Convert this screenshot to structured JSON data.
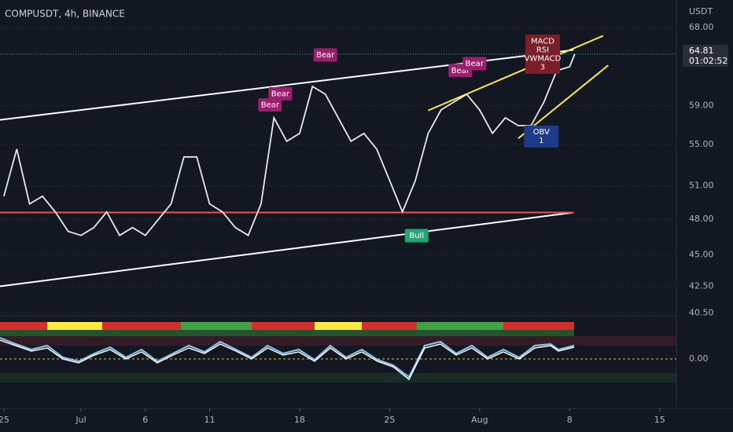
{
  "chart_data": {
    "type": "line",
    "title": "COMPUSDT, 4h, BINANCE",
    "y_axis_label": "USDT",
    "log_scale": true,
    "x": [
      0,
      1,
      2,
      3,
      4,
      5,
      6,
      7,
      8,
      9,
      10,
      11,
      12,
      13,
      14,
      15,
      16,
      17,
      18,
      19,
      20,
      21,
      22,
      23,
      24,
      25,
      26,
      27,
      28,
      29,
      30,
      31,
      32,
      33,
      34,
      35,
      36,
      37,
      38,
      39,
      40,
      41,
      42,
      43,
      44,
      44.4
    ],
    "series": [
      {
        "name": "COMPUSDT",
        "color": "#e8e8e8",
        "values": [
          50.06,
          54.53,
          49.36,
          50.06,
          48.65,
          46.96,
          46.62,
          47.29,
          48.65,
          46.62,
          47.29,
          46.62,
          47.97,
          49.36,
          53.76,
          53.76,
          49.36,
          48.65,
          47.29,
          46.62,
          49.36,
          57.73,
          55.31,
          56.11,
          61.11,
          60.25,
          57.73,
          55.31,
          56.11,
          54.53,
          51.51,
          48.65,
          51.51,
          56.11,
          58.56,
          59.4,
          60.25,
          58.56,
          56.11,
          57.73,
          56.91,
          56.91,
          59.4,
          62.88,
          63.33,
          64.81
        ]
      }
    ],
    "xlim": [
      -0.3,
      52.3
    ],
    "xticks": [
      {
        "value": 0,
        "label": "25"
      },
      {
        "value": 6,
        "label": "Jul"
      },
      {
        "value": 11,
        "label": "6"
      },
      {
        "value": 16,
        "label": "11"
      },
      {
        "value": 23,
        "label": "18"
      },
      {
        "value": 30,
        "label": "25"
      },
      {
        "value": 37,
        "label": "Aug"
      },
      {
        "value": 44,
        "label": "8"
      },
      {
        "value": 51,
        "label": "15"
      }
    ],
    "ylim": [
      40.4,
      71.5
    ],
    "yticks": [
      {
        "value": 40.5,
        "label": "40.50"
      },
      {
        "value": 42.5,
        "label": "42.50"
      },
      {
        "value": 45,
        "label": "45.00"
      },
      {
        "value": 48,
        "label": "48.00"
      },
      {
        "value": 51,
        "label": "51.00"
      },
      {
        "value": 55,
        "label": "55.00"
      },
      {
        "value": 59,
        "label": "59.00"
      },
      {
        "value": 68,
        "label": "68.00"
      }
    ],
    "last_price": 64.81,
    "countdown": "01:02:52",
    "trendlines": [
      {
        "color": "#ffffff",
        "points": [
          [
            -0.3,
            57.5
          ],
          [
            44.3,
            65.3
          ]
        ]
      },
      {
        "color": "#ffffff",
        "points": [
          [
            -0.3,
            42.5
          ],
          [
            44.3,
            48.6
          ]
        ]
      },
      {
        "color": "#ef5350",
        "points": [
          [
            -0.3,
            48.6
          ],
          [
            44.3,
            48.6
          ]
        ]
      },
      {
        "color": "#ffeb3b",
        "points": [
          [
            33,
            58.5
          ],
          [
            46.6,
            67
          ]
        ]
      },
      {
        "color": "#ffeb3b",
        "points": [
          [
            40,
            55.6
          ],
          [
            47,
            63.5
          ]
        ]
      }
    ],
    "annotations": [
      {
        "text": [
          "Bear"
        ],
        "x": 20.7,
        "y": 59.1,
        "color": "#9c1f6e"
      },
      {
        "text": [
          "Bear"
        ],
        "x": 21.5,
        "y": 60.3,
        "color": "#9c1f6e"
      },
      {
        "text": [
          "Bear"
        ],
        "x": 25,
        "y": 64.7,
        "color": "#9c1f6e"
      },
      {
        "text": [
          "Bear"
        ],
        "x": 35.5,
        "y": 62.9,
        "color": "#9c1f6e"
      },
      {
        "text": [
          "Bear"
        ],
        "x": 36.6,
        "y": 63.7,
        "color": "#9c1f6e"
      },
      {
        "text": [
          "Bull"
        ],
        "x": 32.1,
        "y": 46.6,
        "color": "#1fa874"
      },
      {
        "text": [
          "MACD",
          "RSI",
          "VWMACD",
          "3"
        ],
        "x": 41.9,
        "y": 64.8,
        "color": "#7a1f2a"
      },
      {
        "text": [
          "OBV",
          "1"
        ],
        "x": 41.8,
        "y": 55.8,
        "color": "#1e3a8a"
      }
    ],
    "oscillator_yticks": [
      {
        "value": 0,
        "label": "0.00"
      }
    ]
  }
}
